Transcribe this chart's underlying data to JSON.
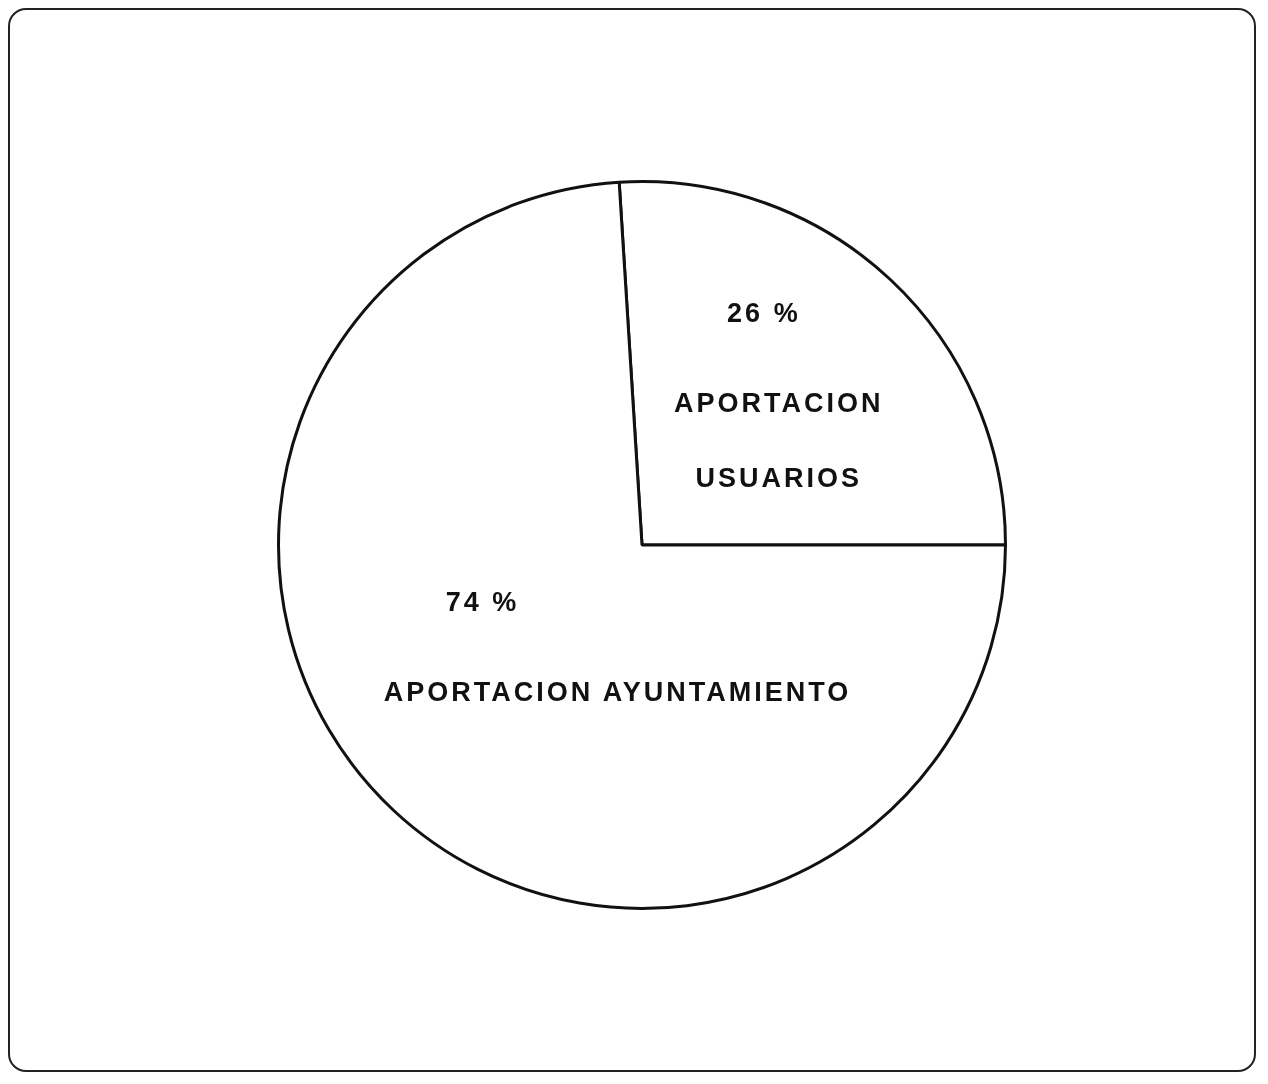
{
  "chart_data": {
    "type": "pie",
    "categories": [
      "APORTACION USUARIOS",
      "APORTACION AYUNTAMIENTO"
    ],
    "values": [
      26,
      74
    ],
    "colors": [
      "#ffffff",
      "#ffffff"
    ],
    "value_labels": [
      "26 %",
      "74 %"
    ],
    "legend": false
  }
}
